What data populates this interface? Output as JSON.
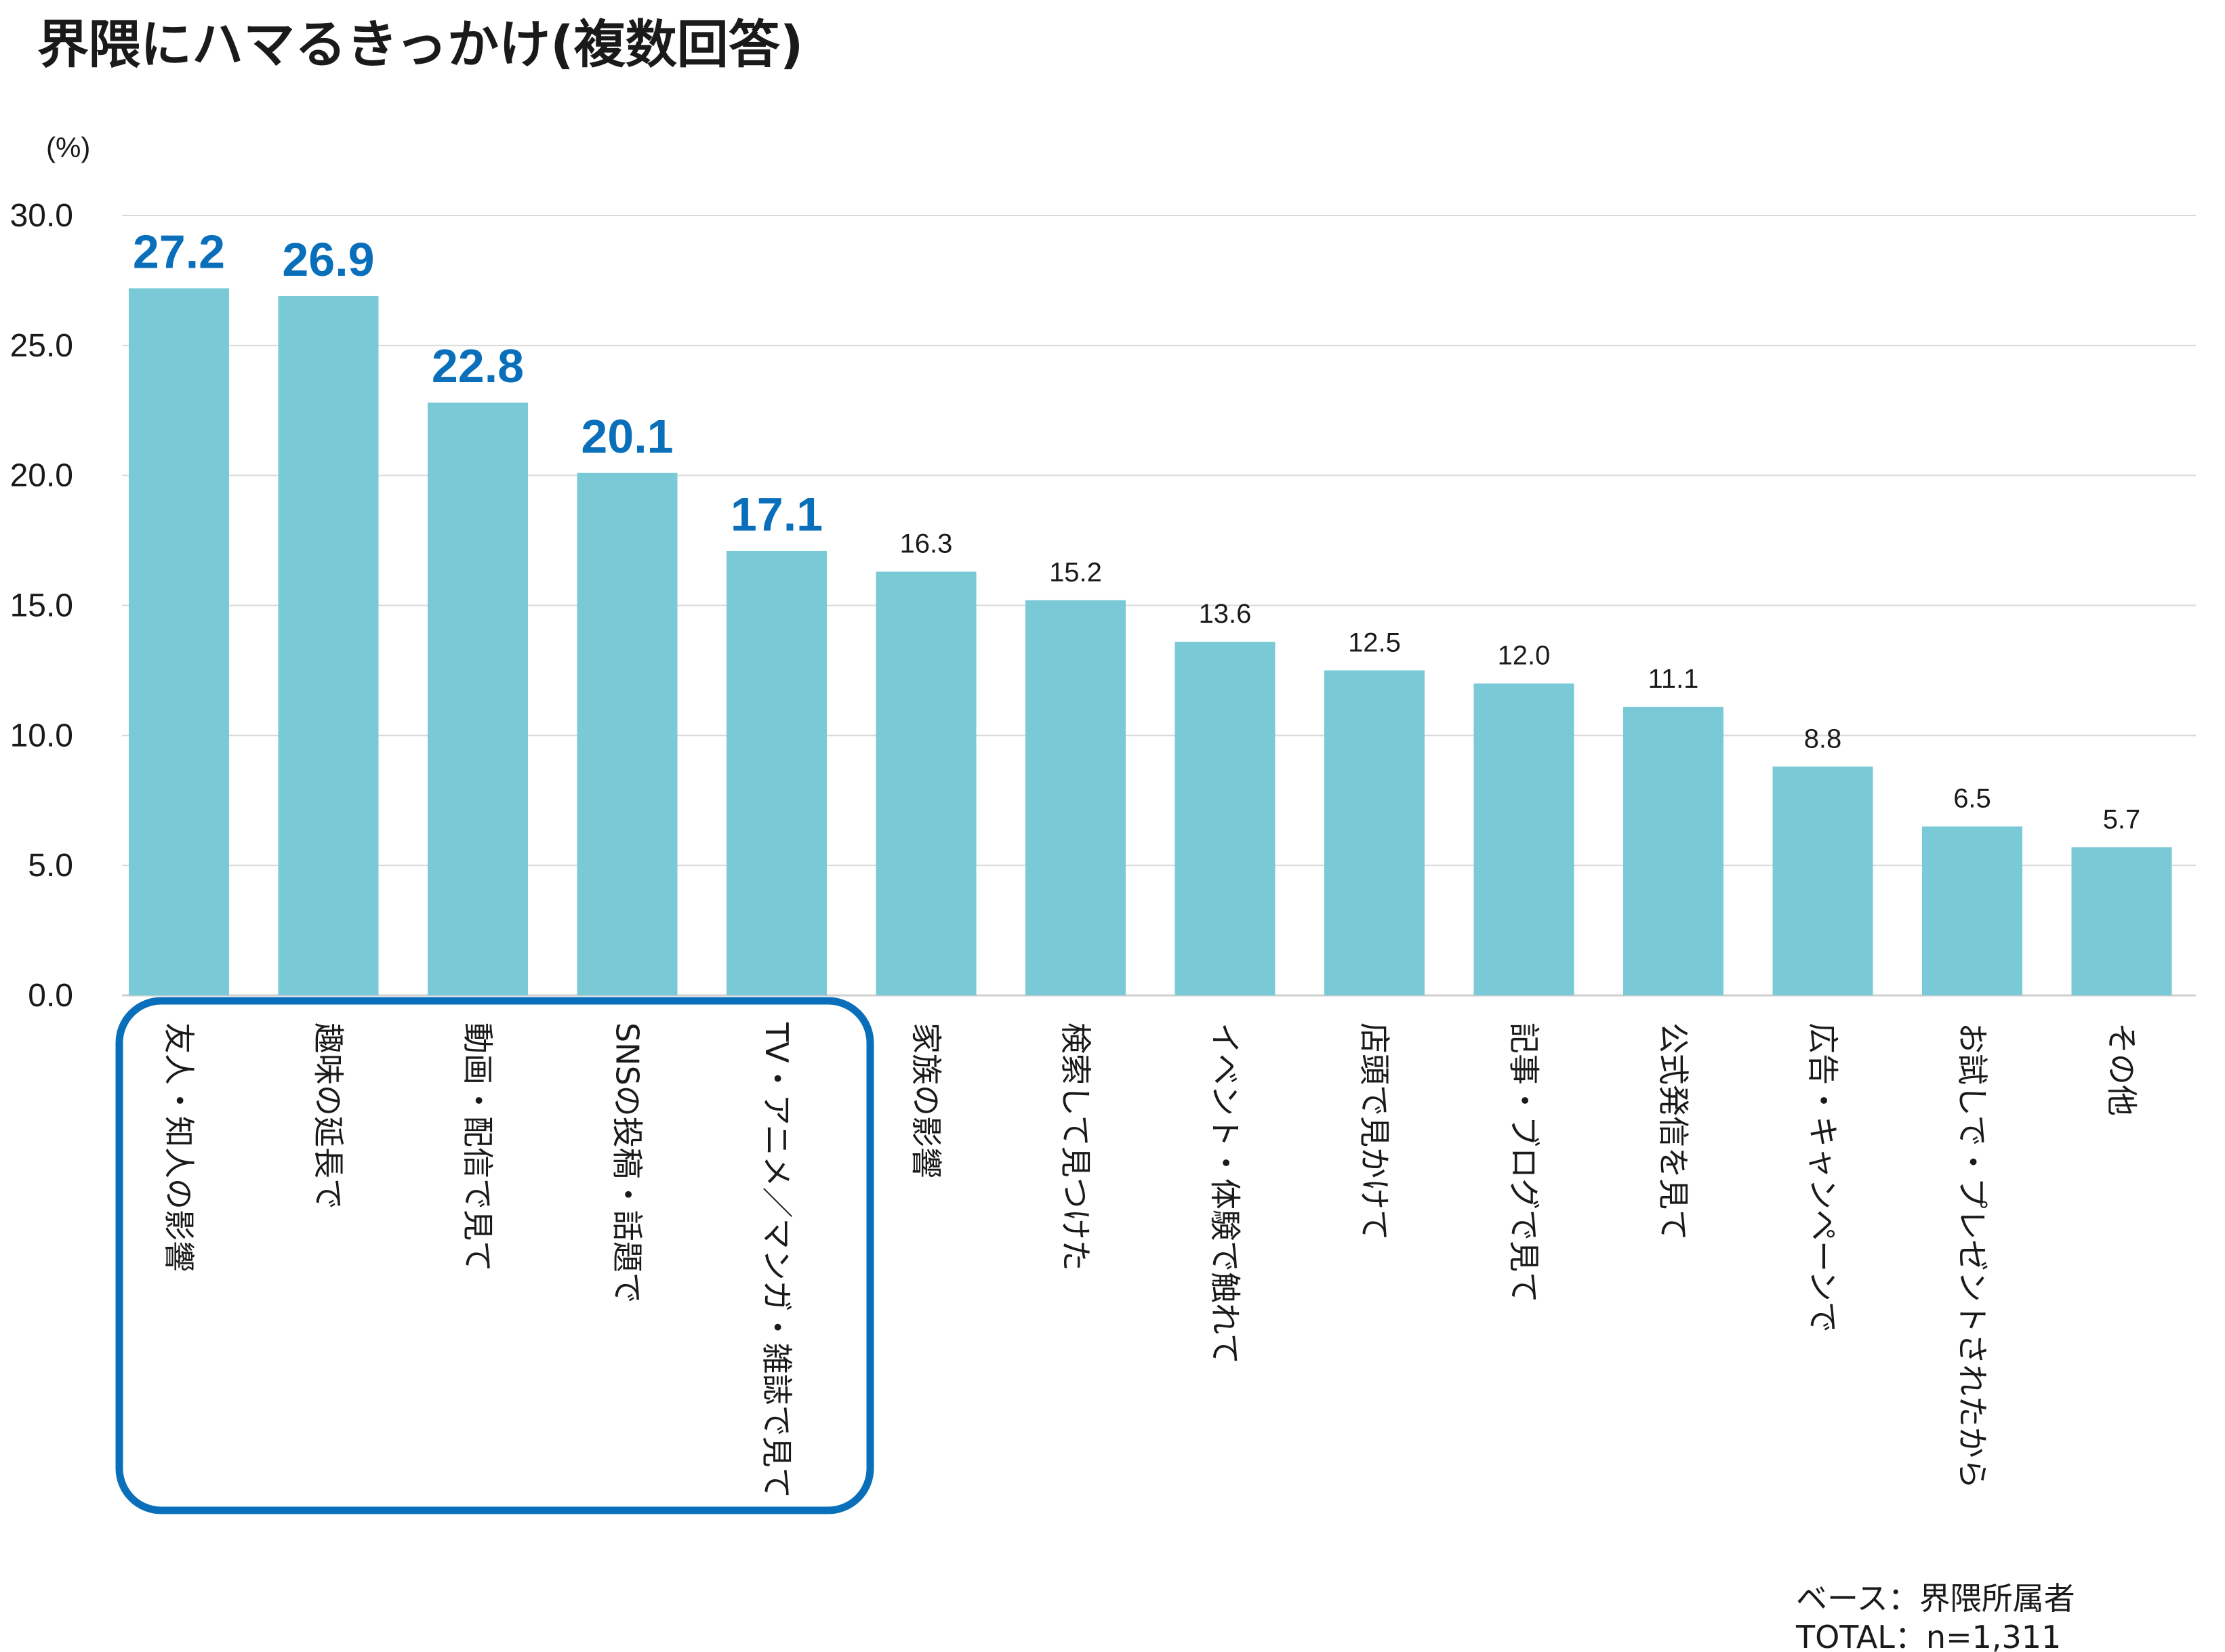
{
  "chart_data": {
    "type": "bar",
    "title": "界隈にハマるきっかけ(複数回答)",
    "ylabel": "(%)",
    "xlabel": "",
    "ylim": [
      0,
      30
    ],
    "yticks": [
      "0.0",
      "5.0",
      "10.0",
      "15.0",
      "20.0",
      "25.0",
      "30.0"
    ],
    "grid": true,
    "categories": [
      "友人・知人の影響",
      "趣味の延長で",
      "動画・配信で見て",
      "SNSの投稿・話題で",
      "TV・アニメ／マンガ・雑誌で見て",
      "家族の影響",
      "検索して見つけた",
      "イベント・体験で触れて",
      "店頭で見かけて",
      "記事・ブログで見て",
      "公式発信を見て",
      "広告・キャンペーンで",
      "お試しで・プレゼントされたから",
      "その他"
    ],
    "values": [
      27.2,
      26.9,
      22.8,
      20.1,
      17.1,
      16.3,
      15.2,
      13.6,
      12.5,
      12.0,
      11.1,
      8.8,
      6.5,
      5.7
    ],
    "value_labels": [
      "27.2",
      "26.9",
      "22.8",
      "20.1",
      "17.1",
      "16.3",
      "15.2",
      "13.6",
      "12.5",
      "12.0",
      "11.1",
      "8.8",
      "6.5",
      "5.7"
    ],
    "highlighted_count": 5,
    "bar_color": "#7ac9d6",
    "highlight_color": "#0a6fba"
  },
  "footnote": {
    "base": "ベース：界隈所属者",
    "total": "TOTAL：n=1,311"
  }
}
